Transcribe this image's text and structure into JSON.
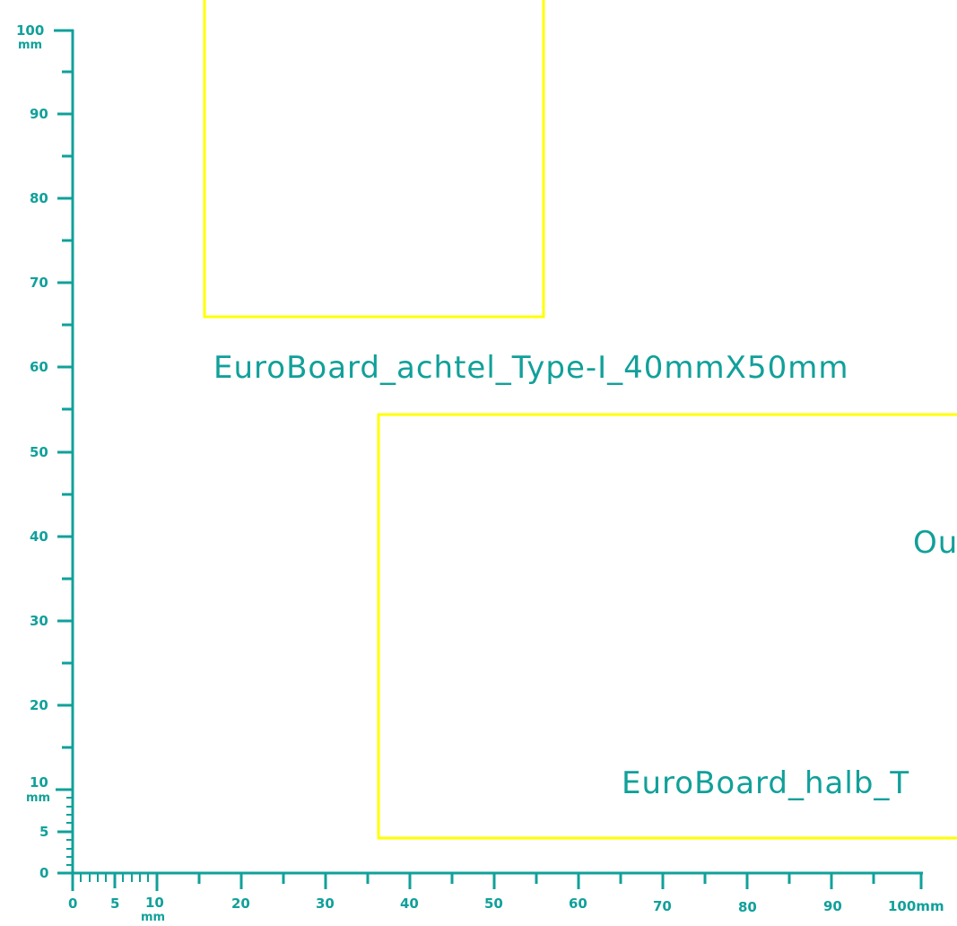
{
  "colors": {
    "background": "#ffffff",
    "ruler": "#11a09a",
    "text": "#11a09a",
    "board_outline": "#ffff00"
  },
  "y_ruler": {
    "top_value": "100",
    "top_unit": "mm",
    "labels": [
      "90",
      "80",
      "70",
      "60",
      "50",
      "40",
      "30",
      "20"
    ],
    "fine_value": "10",
    "fine_unit": "mm",
    "five": "5",
    "zero": "0"
  },
  "x_ruler": {
    "zero": "0",
    "five": "5",
    "fine_value": "10",
    "fine_unit": "mm",
    "labels": [
      "20",
      "30",
      "40",
      "50",
      "60",
      "70",
      "80",
      "90"
    ],
    "end_value": "100mm"
  },
  "boards": {
    "top_label": "EuroBoard_achtel_Type-I_40mmX50mm",
    "bottom_label": "EuroBoard_halb_T",
    "right_label": "Ou"
  }
}
